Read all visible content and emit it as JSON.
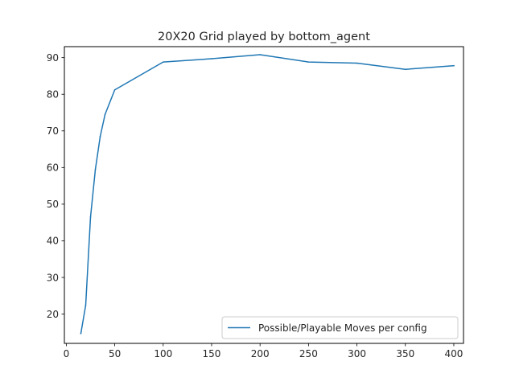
{
  "chart_data": {
    "type": "line",
    "title": "20X20 Grid played by bottom_agent",
    "xlabel": "",
    "ylabel": "",
    "xlim": [
      -2,
      410
    ],
    "ylim": [
      12,
      93
    ],
    "xticks": [
      0,
      50,
      100,
      150,
      200,
      250,
      300,
      350,
      400
    ],
    "yticks": [
      20,
      30,
      40,
      50,
      60,
      70,
      80,
      90
    ],
    "grid": false,
    "legend_position": "lower right",
    "series": [
      {
        "name": "Possible/Playable Moves per config",
        "color": "#1f77b4",
        "x": [
          15,
          20,
          25,
          30,
          35,
          40,
          50,
          100,
          150,
          200,
          250,
          300,
          350,
          400
        ],
        "y": [
          14.7,
          22.4,
          46.5,
          59.5,
          68.5,
          74.5,
          81.2,
          88.8,
          89.7,
          90.8,
          88.8,
          88.5,
          86.8,
          87.8
        ]
      }
    ]
  }
}
